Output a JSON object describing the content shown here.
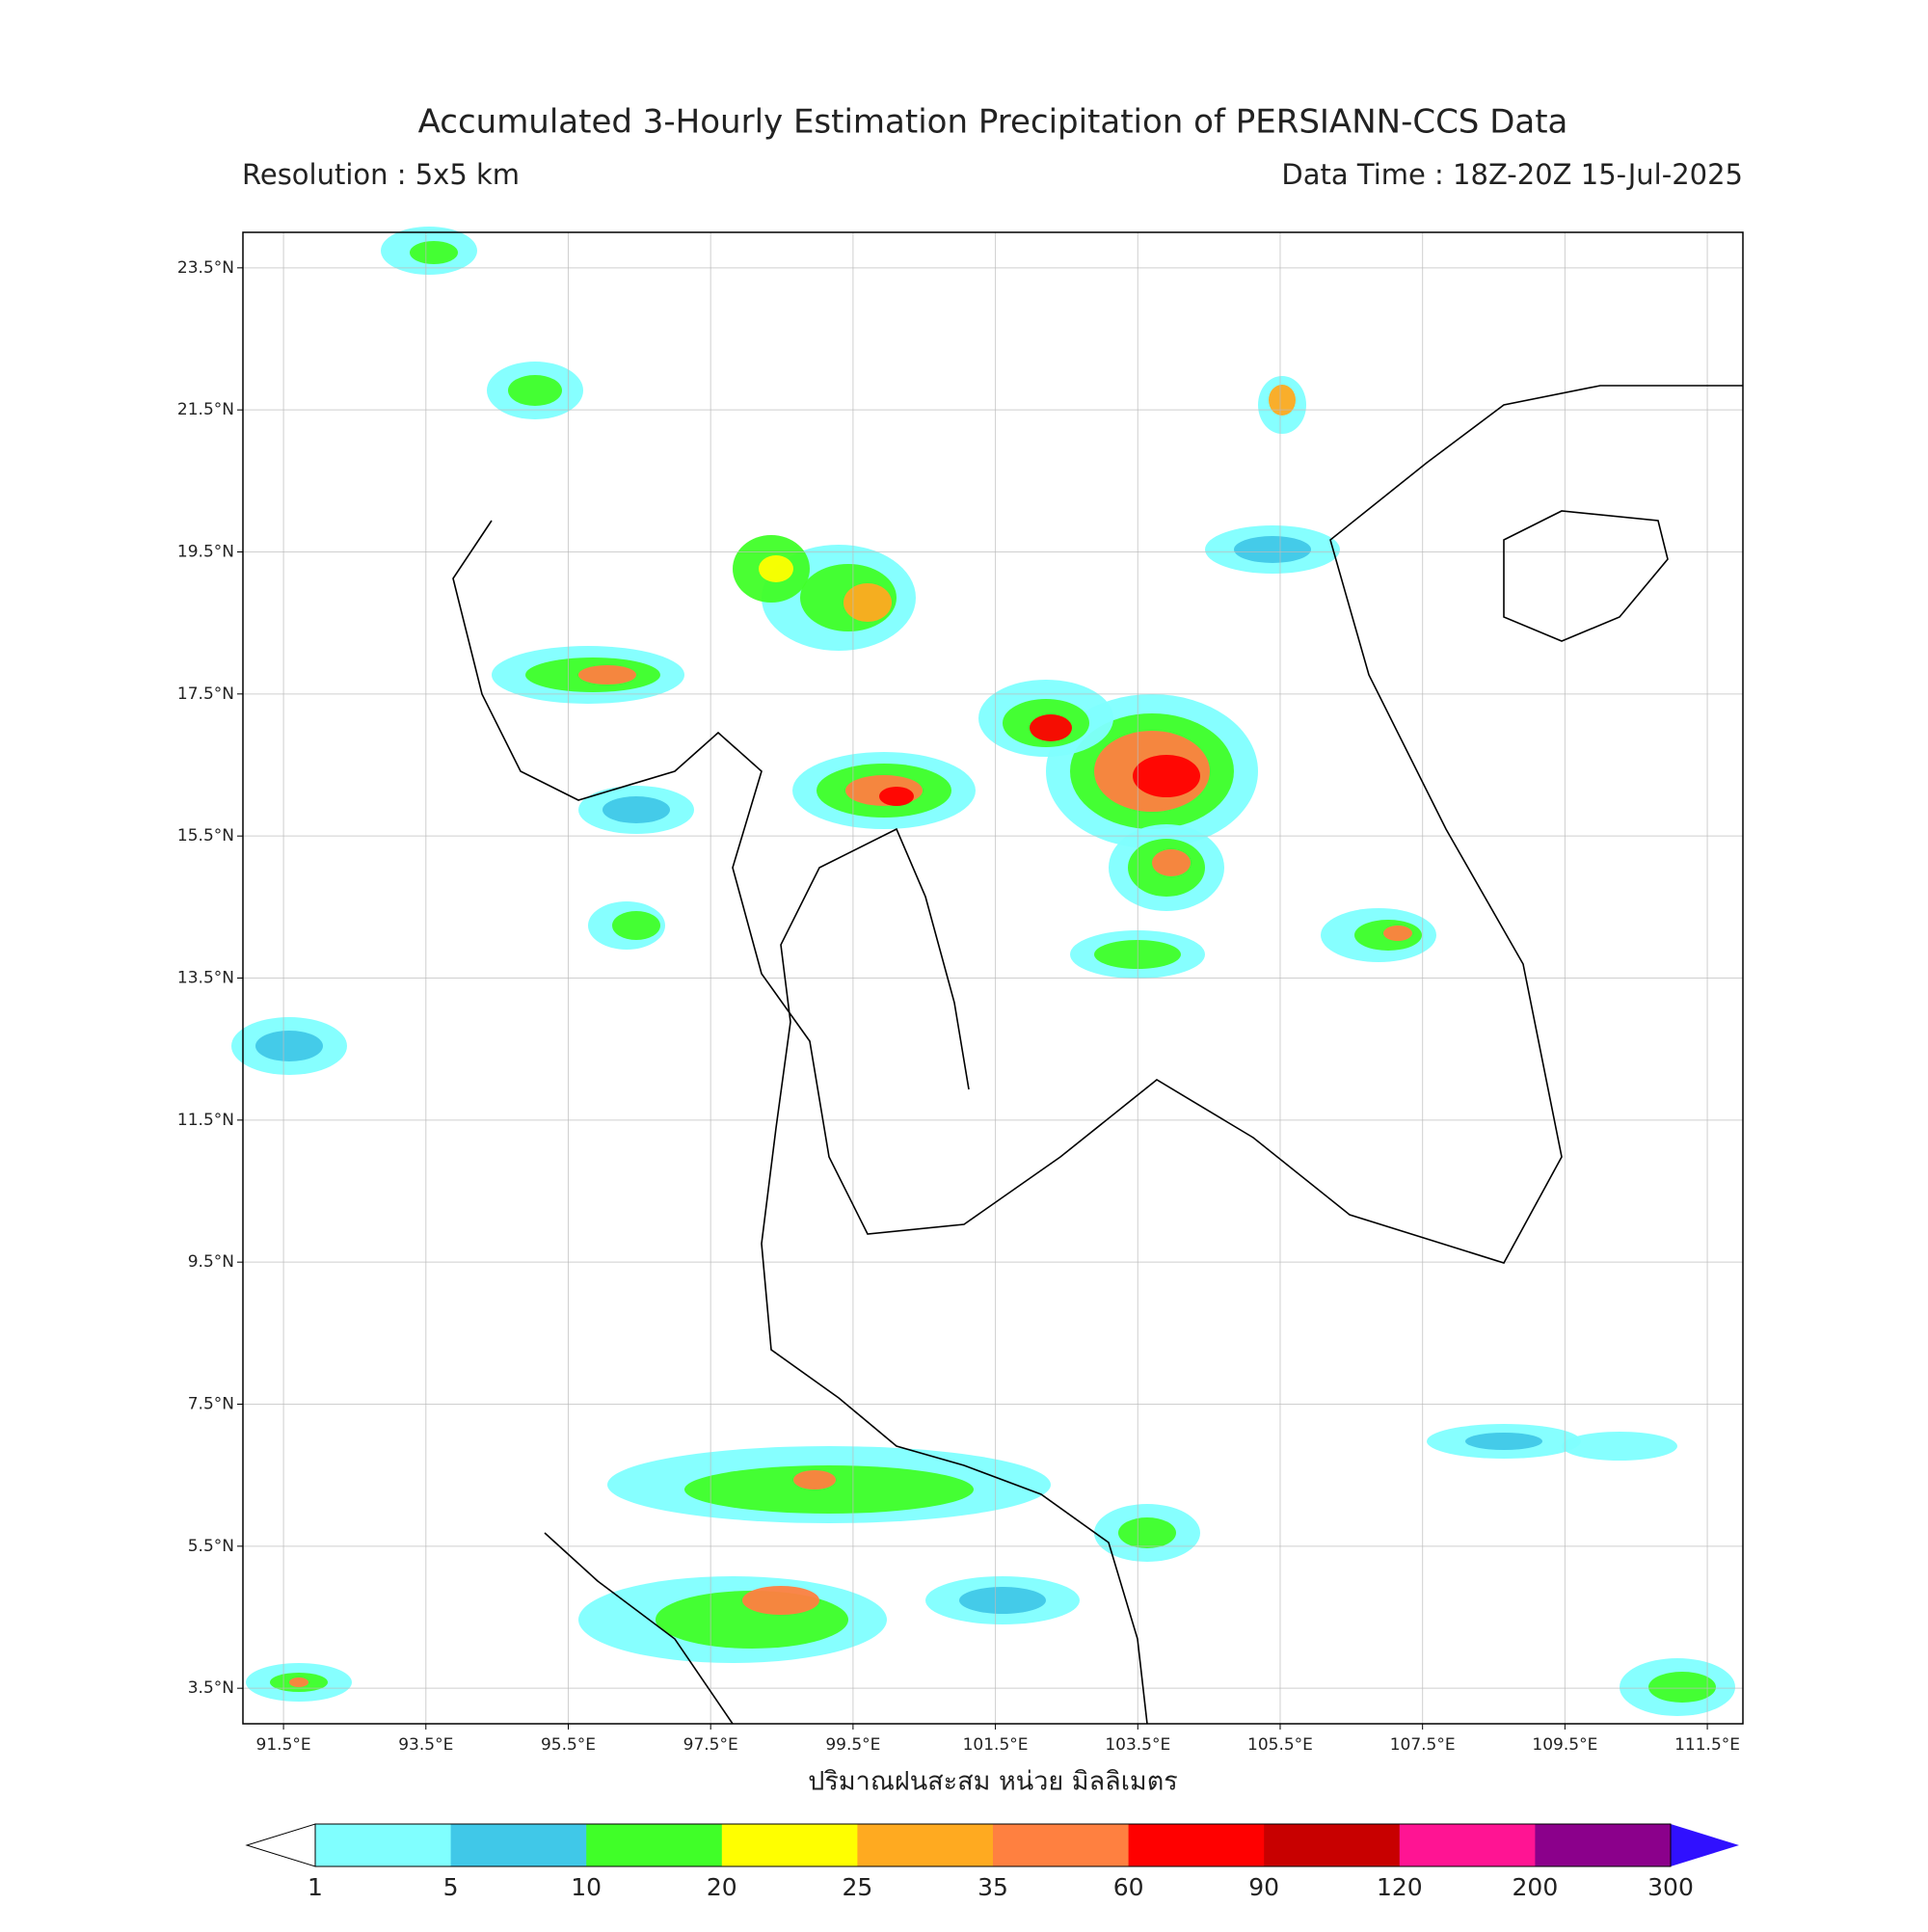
{
  "header": {
    "title": "Accumulated 3-Hourly Estimation Precipitation of PERSIANN-CCS Data",
    "resolution": "Resolution : 5x5 km",
    "data_time": "Data Time : 18Z-20Z 15-Jul-2025"
  },
  "map": {
    "lat_range": [
      3.0,
      24.0
    ],
    "lon_range": [
      90.93,
      112.0
    ],
    "lat_ticks": [
      {
        "value": 23.5,
        "label": "23.5°N"
      },
      {
        "value": 21.5,
        "label": "21.5°N"
      },
      {
        "value": 19.5,
        "label": "19.5°N"
      },
      {
        "value": 17.5,
        "label": "17.5°N"
      },
      {
        "value": 15.5,
        "label": "15.5°N"
      },
      {
        "value": 13.5,
        "label": "13.5°N"
      },
      {
        "value": 11.5,
        "label": "11.5°N"
      },
      {
        "value": 9.5,
        "label": "9.5°N"
      },
      {
        "value": 7.5,
        "label": "7.5°N"
      },
      {
        "value": 5.5,
        "label": "5.5°N"
      },
      {
        "value": 3.5,
        "label": "3.5°N"
      }
    ],
    "lon_ticks": [
      {
        "value": 91.5,
        "label": "91.5°E"
      },
      {
        "value": 93.5,
        "label": "93.5°E"
      },
      {
        "value": 95.5,
        "label": "95.5°E"
      },
      {
        "value": 97.5,
        "label": "97.5°E"
      },
      {
        "value": 99.5,
        "label": "99.5°E"
      },
      {
        "value": 101.5,
        "label": "101.5°E"
      },
      {
        "value": 103.5,
        "label": "103.5°E"
      },
      {
        "value": 105.5,
        "label": "105.5°E"
      },
      {
        "value": 107.5,
        "label": "107.5°E"
      },
      {
        "value": 109.5,
        "label": "109.5°E"
      },
      {
        "value": 111.5,
        "label": "111.5°E"
      }
    ],
    "grid": true,
    "x_label": "ปริมาณฝนสะสม หน่วย มิลลิเมตร"
  },
  "colorbar": {
    "ticks": [
      1,
      5,
      10,
      20,
      25,
      35,
      60,
      90,
      120,
      200,
      300
    ],
    "colors": [
      "#80ffff",
      "#40c8e8",
      "#40ff28",
      "#ffff00",
      "#ffaa20",
      "#ff8040",
      "#ff0000",
      "#c80000",
      "#ff1493",
      "#8b008b"
    ],
    "under_color": "#ffffff",
    "over_color": "#3010ff"
  }
}
